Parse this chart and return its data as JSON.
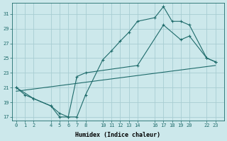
{
  "xlabel": "Humidex (Indice chaleur)",
  "background_color": "#cce8eb",
  "grid_color": "#a8cdd2",
  "line_color": "#1e6b6b",
  "xlim": [
    -0.5,
    24
  ],
  "ylim": [
    16.5,
    32.5
  ],
  "xticks": [
    0,
    1,
    2,
    4,
    5,
    6,
    7,
    8,
    10,
    11,
    12,
    13,
    14,
    16,
    17,
    18,
    19,
    20,
    22,
    23
  ],
  "yticks": [
    17,
    19,
    21,
    23,
    25,
    27,
    29,
    31
  ],
  "line1_x": [
    0,
    1,
    2,
    4,
    5,
    6,
    7,
    8,
    10,
    11,
    12,
    13,
    14,
    16,
    17,
    18,
    19,
    20,
    22,
    23
  ],
  "line1_y": [
    21,
    20,
    19.5,
    18.5,
    17,
    17,
    17,
    20,
    24.8,
    26,
    27.3,
    28.5,
    30,
    30.5,
    32,
    30,
    30,
    29.5,
    25,
    24.5
  ],
  "line2_x": [
    0,
    2,
    4,
    5,
    6,
    7,
    8,
    14,
    17,
    19,
    20,
    22,
    23
  ],
  "line2_y": [
    21,
    19.5,
    18.5,
    17.5,
    17,
    22.5,
    23,
    24,
    29.5,
    27.5,
    28,
    25,
    24.5
  ],
  "line3_x": [
    0,
    23
  ],
  "line3_y": [
    20.5,
    24
  ]
}
